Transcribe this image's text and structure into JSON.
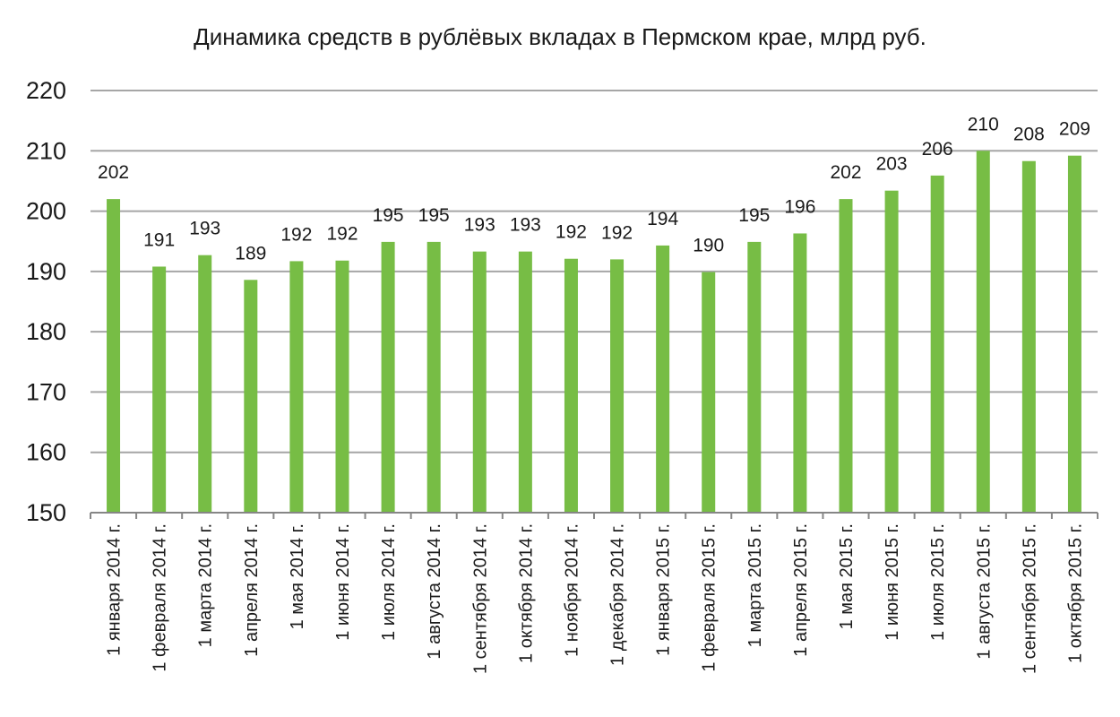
{
  "chart_data": {
    "type": "bar",
    "title": "Динамика средств в рублёвых вкладах в Пермском крае, млрд руб.",
    "xlabel": "",
    "ylabel": "",
    "ylim": [
      150,
      220
    ],
    "yticks": [
      "150",
      "160",
      "170",
      "180",
      "190",
      "200",
      "210",
      "220"
    ],
    "grid": true,
    "legend": "none",
    "bar_color": "#77bd45",
    "categories": [
      "1 января 2014 г.",
      "1 февраля 2014 г.",
      "1 марта 2014 г.",
      "1 апреля 2014 г.",
      "1 мая 2014 г.",
      "1 июня 2014 г.",
      "1 июля 2014 г.",
      "1 августа 2014 г.",
      "1 сентября 2014 г.",
      "1 октября 2014 г.",
      "1 ноября 2014 г.",
      "1 декабря 2014 г.",
      "1 января 2015 г.",
      "1 февраля 2015 г.",
      "1 марта 2015 г.",
      "1 апреля 2015 г.",
      "1 мая 2015 г.",
      "1 июня 2015 г.",
      "1 июля 2015 г.",
      "1 августа 2015 г.",
      "1 сентября 2015 г.",
      "1 октября 2015 г."
    ],
    "values": [
      202,
      190.8,
      192.7,
      188.6,
      191.7,
      191.8,
      194.9,
      194.9,
      193.3,
      193.3,
      192.1,
      192.0,
      194.3,
      189.9,
      194.9,
      196.3,
      202.0,
      203.4,
      205.9,
      210.0,
      208.3,
      209.2
    ],
    "data_labels": [
      "202",
      "191",
      "193",
      "189",
      "192",
      "192",
      "195",
      "195",
      "193",
      "193",
      "192",
      "192",
      "194",
      "190",
      "195",
      "196",
      "202",
      "203",
      "206",
      "210",
      "208",
      "209"
    ]
  }
}
